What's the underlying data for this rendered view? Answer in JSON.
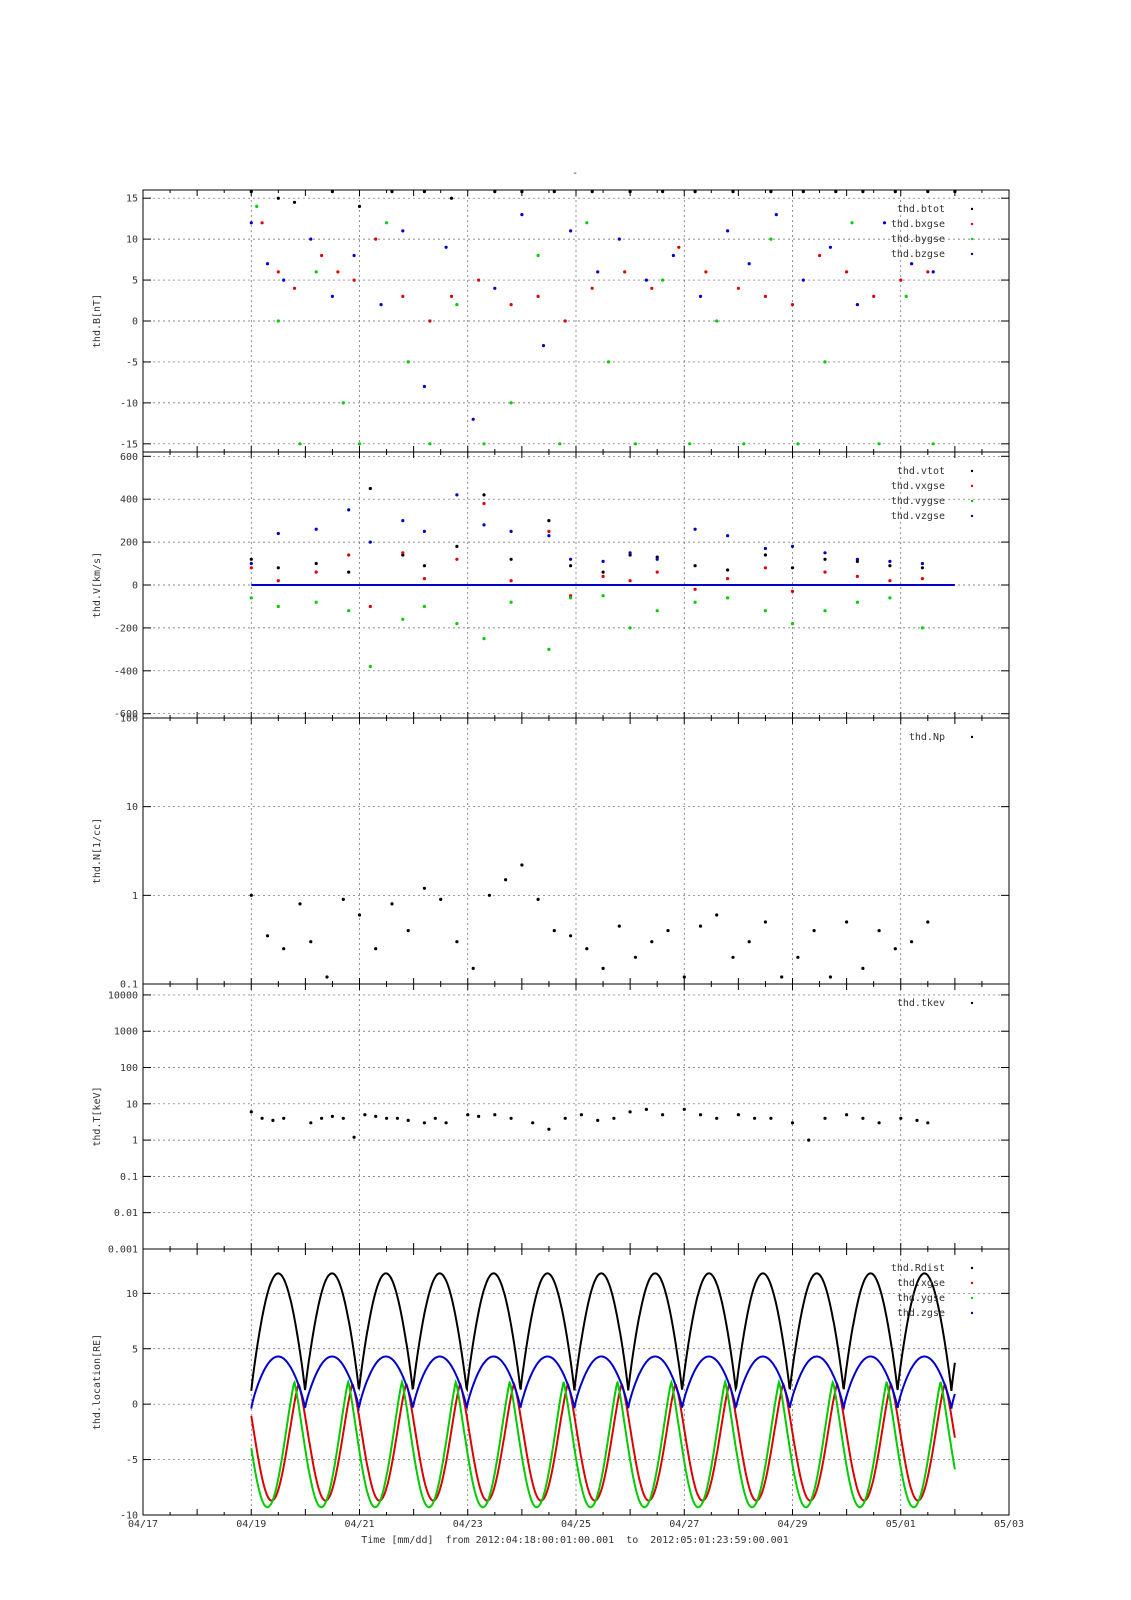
{
  "figure": {
    "title": "-",
    "xlabel": "Time [mm/dd]  from 2012:04:18:00:01:00.001  to  2012:05:01:23:59:00.001",
    "x_ticks": [
      "04/17",
      "04/19",
      "04/21",
      "04/23",
      "04/25",
      "04/27",
      "04/29",
      "05/01",
      "05/03"
    ]
  },
  "chart_data": [
    {
      "type": "scatter",
      "id": "B",
      "ylabel": "thd.B[nT]",
      "ylim": [
        -16,
        16
      ],
      "yticks": [
        15,
        10,
        5,
        0,
        -5,
        -10,
        -15
      ],
      "ytick_labels": [
        "15",
        "10",
        "5",
        "0",
        "-5",
        "-10",
        "-15"
      ],
      "xlim_days": [
        -1,
        15
      ],
      "grid": true,
      "legend_position": "top-right",
      "series": [
        {
          "name": "thd.btot",
          "color": "#000000",
          "x": [
            1.0,
            1.5,
            1.8,
            2.5,
            3.0,
            3.6,
            4.2,
            4.7,
            5.5,
            6.0,
            6.6,
            7.3,
            8.0,
            8.6,
            9.2,
            9.9,
            10.6,
            11.2,
            11.8,
            12.3,
            12.9,
            13.5,
            14.0
          ],
          "y": [
            15.8,
            15.0,
            14.5,
            15.8,
            14.0,
            15.8,
            15.8,
            15.0,
            15.8,
            15.8,
            15.8,
            15.8,
            15.8,
            15.8,
            15.8,
            15.8,
            15.8,
            15.8,
            15.8,
            15.8,
            15.8,
            15.8,
            15.8
          ]
        },
        {
          "name": "thd.bxgse",
          "color": "#dd0000",
          "x": [
            1.2,
            1.5,
            1.8,
            2.3,
            2.6,
            2.9,
            3.3,
            3.8,
            4.3,
            4.7,
            5.2,
            5.8,
            6.3,
            6.8,
            7.3,
            7.9,
            8.4,
            8.9,
            9.4,
            10.0,
            10.5,
            11.0,
            11.5,
            12.0,
            12.5,
            13.0,
            13.5
          ],
          "y": [
            12,
            6,
            4,
            8,
            6,
            5,
            10,
            3,
            0,
            3,
            5,
            2,
            3,
            0,
            4,
            6,
            4,
            9,
            6,
            4,
            3,
            2,
            8,
            6,
            3,
            5,
            6
          ]
        },
        {
          "name": "thd.bygse",
          "color": "#00cc00",
          "x": [
            1.1,
            1.5,
            1.9,
            2.2,
            2.7,
            3.0,
            3.5,
            3.9,
            4.3,
            4.8,
            5.3,
            5.8,
            6.3,
            6.7,
            7.2,
            7.6,
            8.1,
            8.6,
            9.1,
            9.6,
            10.1,
            10.6,
            11.1,
            11.6,
            12.1,
            12.6,
            13.1,
            13.6
          ],
          "y": [
            14,
            0,
            -15,
            6,
            -10,
            -15,
            12,
            -5,
            -15,
            2,
            -15,
            -10,
            8,
            -15,
            12,
            -5,
            -15,
            5,
            -15,
            0,
            -15,
            10,
            -15,
            -5,
            12,
            -15,
            3,
            -15
          ]
        },
        {
          "name": "thd.bzgse",
          "color": "#0000cc",
          "x": [
            1.0,
            1.3,
            1.6,
            2.1,
            2.5,
            2.9,
            3.4,
            3.8,
            4.2,
            4.6,
            5.1,
            5.5,
            6.0,
            6.4,
            6.9,
            7.4,
            7.8,
            8.3,
            8.8,
            9.3,
            9.8,
            10.2,
            10.7,
            11.2,
            11.7,
            12.2,
            12.7,
            13.2,
            13.6
          ],
          "y": [
            12,
            7,
            5,
            10,
            3,
            8,
            2,
            11,
            -8,
            9,
            -12,
            4,
            13,
            -3,
            11,
            6,
            10,
            5,
            8,
            3,
            11,
            7,
            13,
            5,
            9,
            2,
            12,
            7,
            6
          ]
        }
      ]
    },
    {
      "type": "scatter",
      "id": "V",
      "ylabel": "thd.V[km/s]",
      "ylim": [
        -620,
        620
      ],
      "yticks": [
        600,
        400,
        200,
        0,
        -200,
        -400,
        -600
      ],
      "ytick_labels": [
        "600",
        "400",
        "200",
        "0",
        "-200",
        "-400",
        "-600"
      ],
      "xlim_days": [
        -1,
        15
      ],
      "grid": true,
      "legend_position": "top-right",
      "series": [
        {
          "name": "thd.vtot",
          "color": "#000000",
          "x": [
            1.0,
            1.5,
            2.2,
            2.8,
            3.2,
            3.8,
            4.2,
            4.8,
            5.3,
            5.8,
            6.5,
            6.9,
            7.5,
            8.0,
            8.5,
            9.2,
            9.8,
            10.5,
            11.0,
            11.6,
            12.2,
            12.8,
            13.4
          ],
          "y": [
            120,
            80,
            100,
            60,
            450,
            140,
            90,
            180,
            420,
            120,
            300,
            90,
            60,
            140,
            130,
            90,
            70,
            140,
            80,
            120,
            110,
            90,
            80
          ]
        },
        {
          "name": "thd.vxgse",
          "color": "#dd0000",
          "x": [
            1.0,
            1.5,
            2.2,
            2.8,
            3.2,
            3.8,
            4.2,
            4.8,
            5.3,
            5.8,
            6.5,
            6.9,
            7.5,
            8.0,
            8.5,
            9.2,
            9.8,
            10.5,
            11.0,
            11.6,
            12.2,
            12.8,
            13.4
          ],
          "y": [
            80,
            20,
            60,
            140,
            -100,
            150,
            30,
            120,
            380,
            20,
            250,
            -50,
            40,
            20,
            60,
            -20,
            30,
            80,
            -30,
            60,
            40,
            20,
            30
          ]
        },
        {
          "name": "thd.vygse",
          "color": "#00cc00",
          "x": [
            1.0,
            1.5,
            2.2,
            2.8,
            3.2,
            3.8,
            4.2,
            4.8,
            5.3,
            5.8,
            6.5,
            6.9,
            7.5,
            8.0,
            8.5,
            9.2,
            9.8,
            10.5,
            11.0,
            11.6,
            12.2,
            12.8,
            13.4
          ],
          "y": [
            -60,
            -100,
            -80,
            -120,
            -380,
            -160,
            -100,
            -180,
            -250,
            -80,
            -300,
            -60,
            -50,
            -200,
            -120,
            -80,
            -60,
            -120,
            -180,
            -120,
            -80,
            -60,
            -200
          ]
        },
        {
          "name": "thd.vzgse",
          "color": "#0000cc",
          "x": [
            1.0,
            1.5,
            2.2,
            2.8,
            3.2,
            3.8,
            4.2,
            4.8,
            5.3,
            5.8,
            6.5,
            6.9,
            7.5,
            8.0,
            8.5,
            9.2,
            9.8,
            10.5,
            11.0,
            11.6,
            12.2,
            12.8,
            13.4
          ],
          "y": [
            100,
            240,
            260,
            350,
            200,
            300,
            250,
            420,
            280,
            250,
            230,
            120,
            110,
            150,
            120,
            260,
            230,
            170,
            180,
            150,
            120,
            110,
            100
          ]
        }
      ]
    },
    {
      "type": "scatter",
      "id": "N",
      "ylabel": "thd.N[1/cc]",
      "yscale": "log",
      "ylim": [
        0.1,
        100
      ],
      "yticks": [
        100,
        10,
        1,
        0.1
      ],
      "ytick_labels": [
        "100",
        "10",
        "1",
        "0.1"
      ],
      "xlim_days": [
        -1,
        15
      ],
      "grid": true,
      "legend_position": "top-right",
      "series": [
        {
          "name": "thd.Np",
          "color": "#000000",
          "x": [
            1.0,
            1.3,
            1.6,
            1.9,
            2.1,
            2.4,
            2.7,
            3.0,
            3.3,
            3.6,
            3.9,
            4.2,
            4.5,
            4.8,
            5.1,
            5.4,
            5.7,
            6.0,
            6.3,
            6.6,
            6.9,
            7.2,
            7.5,
            7.8,
            8.1,
            8.4,
            8.7,
            9.0,
            9.3,
            9.6,
            9.9,
            10.2,
            10.5,
            10.8,
            11.1,
            11.4,
            11.7,
            12.0,
            12.3,
            12.6,
            12.9,
            13.2,
            13.5
          ],
          "y": [
            1.0,
            0.35,
            0.25,
            0.8,
            0.3,
            0.12,
            0.9,
            0.6,
            0.25,
            0.8,
            0.4,
            1.2,
            0.9,
            0.3,
            0.15,
            1.0,
            1.5,
            2.2,
            0.9,
            0.4,
            0.35,
            0.25,
            0.15,
            0.45,
            0.2,
            0.3,
            0.4,
            0.12,
            0.45,
            0.6,
            0.2,
            0.3,
            0.5,
            0.12,
            0.2,
            0.4,
            0.12,
            0.5,
            0.15,
            0.4,
            0.25,
            0.3,
            0.5
          ]
        }
      ]
    },
    {
      "type": "scatter",
      "id": "T",
      "ylabel": "thd.T[keV]",
      "yscale": "log",
      "ylim": [
        0.001,
        20000
      ],
      "yticks": [
        10000,
        1000,
        100,
        10,
        1,
        0.1,
        0.01,
        0.001
      ],
      "ytick_labels": [
        "10000",
        "1000",
        "100",
        "10",
        "1",
        "0.1",
        "0.01",
        "0.001"
      ],
      "xlim_days": [
        -1,
        15
      ],
      "grid": true,
      "legend_position": "top-right",
      "series": [
        {
          "name": "thd.tkev",
          "color": "#000000",
          "x": [
            1.0,
            1.2,
            1.4,
            1.6,
            2.1,
            2.3,
            2.5,
            2.7,
            2.9,
            3.1,
            3.3,
            3.5,
            3.7,
            3.9,
            4.2,
            4.4,
            4.6,
            5.0,
            5.2,
            5.5,
            5.8,
            6.2,
            6.5,
            6.8,
            7.1,
            7.4,
            7.7,
            8.0,
            8.3,
            8.6,
            9.0,
            9.3,
            9.6,
            10.0,
            10.3,
            10.6,
            11.0,
            11.3,
            11.6,
            12.0,
            12.3,
            12.6,
            13.0,
            13.3,
            13.5
          ],
          "y": [
            6,
            4,
            3.5,
            4,
            3,
            4,
            4.5,
            4,
            1.2,
            5,
            4.5,
            4,
            4,
            3.5,
            3,
            4,
            3,
            5,
            4.5,
            5,
            4,
            3,
            2,
            4,
            5,
            3.5,
            4,
            6,
            7,
            5,
            7,
            5,
            4,
            5,
            4,
            4,
            3,
            1,
            4,
            5,
            4,
            3,
            4,
            3.5,
            3
          ]
        }
      ]
    },
    {
      "type": "line",
      "id": "location",
      "ylabel": "thd.location[RE]",
      "ylim": [
        -10,
        14
      ],
      "yticks": [
        10,
        5,
        0,
        -5,
        -10
      ],
      "ytick_labels": [
        "10",
        "5",
        "0",
        "-5",
        "-10"
      ],
      "xlim_days": [
        -1,
        15
      ],
      "grid": true,
      "legend_position": "top-right",
      "orbit_period_days": 0.995,
      "orbit_start_day": 1.0,
      "orbit_end_day": 14.0,
      "series": [
        {
          "name": "thd.Rdist",
          "color": "#000000",
          "min": 1.2,
          "max": 11.8
        },
        {
          "name": "thd.xgse",
          "color": "#dd0000",
          "min": -8.7,
          "max": 1.8
        },
        {
          "name": "thd.ygse",
          "color": "#00cc00",
          "min": -9.3,
          "max": 2.0
        },
        {
          "name": "thd.zgse",
          "color": "#0000cc",
          "min": -0.4,
          "max": 4.3
        }
      ]
    }
  ]
}
